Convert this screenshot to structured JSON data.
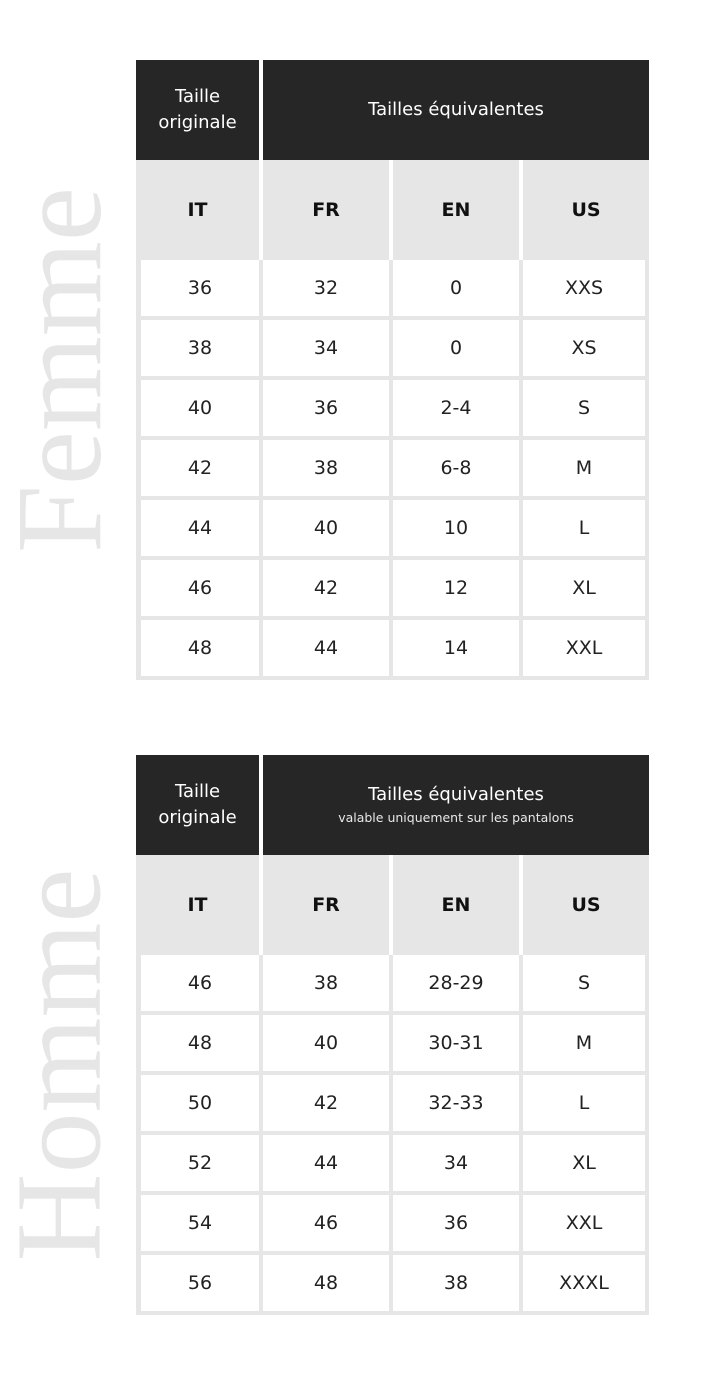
{
  "femme": {
    "side_label": "Femme",
    "header": {
      "original": "Taille originale",
      "equivalent": "Tailles équivalentes"
    },
    "columns": [
      "IT",
      "FR",
      "EN",
      "US"
    ],
    "rows": [
      [
        "36",
        "32",
        "0",
        "XXS"
      ],
      [
        "38",
        "34",
        "0",
        "XS"
      ],
      [
        "40",
        "36",
        "2-4",
        "S"
      ],
      [
        "42",
        "38",
        "6-8",
        "M"
      ],
      [
        "44",
        "40",
        "10",
        "L"
      ],
      [
        "46",
        "42",
        "12",
        "XL"
      ],
      [
        "48",
        "44",
        "14",
        "XXL"
      ]
    ]
  },
  "homme": {
    "side_label": "Homme",
    "header": {
      "original": "Taille originale",
      "equivalent": "Tailles équivalentes",
      "note": "valable uniquement sur les pantalons"
    },
    "columns": [
      "IT",
      "FR",
      "EN",
      "US"
    ],
    "rows": [
      [
        "46",
        "38",
        "28-29",
        "S"
      ],
      [
        "48",
        "40",
        "30-31",
        "M"
      ],
      [
        "50",
        "42",
        "32-33",
        "L"
      ],
      [
        "52",
        "44",
        "34",
        "XL"
      ],
      [
        "54",
        "46",
        "36",
        "XXL"
      ],
      [
        "56",
        "48",
        "38",
        "XXXL"
      ]
    ]
  },
  "colors": {
    "header_dark": "#262626",
    "header_light": "#e6e6e6",
    "side_label": "#e6e6e6"
  }
}
